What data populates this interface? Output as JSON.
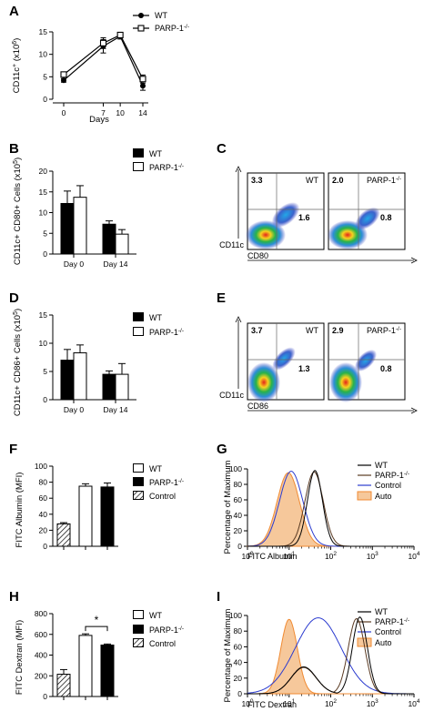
{
  "colors": {
    "ink": "#000000",
    "hatch": "#000000",
    "auto_fill": "#f6c89b",
    "auto_edge": "#f08a32",
    "control_line": "#2b3bcf",
    "wt_line": "#000000",
    "parp_line": "#5a3a22"
  },
  "panel_labels": {
    "A": "A",
    "B": "B",
    "C": "C",
    "D": "D",
    "E": "E",
    "F": "F",
    "G": "G",
    "H": "H",
    "I": "I"
  },
  "panel_a": {
    "ylabel": "CD11c",
    "ylabel_sup": "+",
    "ylabel_unit": " (x10",
    "ylabel_unit_sup": "6",
    "ylabel_close": ")",
    "xlabel": "Days"
  },
  "panel_b": {
    "ylabel": "CD11c+ CD80+ Cells (x10",
    "ylabel_sup": "5",
    "ylabel_close": ")"
  },
  "panel_d": {
    "ylabel": "CD11c+ CD86+ Cells (x10",
    "ylabel_sup": "5",
    "ylabel_close": ")"
  },
  "panel_f": {
    "ylabel": "FITC Albumin (MFI)"
  },
  "panel_h": {
    "ylabel": "FITC Dextran (MFI)",
    "sig": "*"
  },
  "panel_g": {
    "ylabel": "Percentage of Maximum",
    "xlabel": "FITC Albumin"
  },
  "panel_i": {
    "ylabel": "Percentage of Maximum",
    "xlabel": "FITC Dextran"
  },
  "flow_c": {
    "left": {
      "tl": "3.3",
      "br": "1.6",
      "tag": "WT",
      "ylab": "CD11c"
    },
    "right": {
      "tl": "2.0",
      "br": "0.8",
      "tag": "PARP-1",
      "tag_sup": "-/-"
    },
    "xlab": "CD80"
  },
  "flow_e": {
    "left": {
      "tl": "3.7",
      "br": "1.3",
      "tag": "WT",
      "ylab": "CD11c"
    },
    "right": {
      "tl": "2.9",
      "br": "0.8",
      "tag": "PARP-1",
      "tag_sup": "-/-"
    },
    "xlab": "CD86"
  },
  "legends": {
    "wt": "WT",
    "parp": "PARP-1",
    "parp_sup": "-/-",
    "control": "Control",
    "auto": "Auto"
  },
  "chart_data": [
    {
      "id": "A",
      "type": "line",
      "xlabel": "Days",
      "ylabel": "CD11c+ (x10^6)",
      "x": [
        0,
        7,
        10,
        14
      ],
      "xlim": [
        0,
        14
      ],
      "ylim": [
        0,
        15
      ],
      "yticks": [
        0,
        5,
        10,
        15
      ],
      "xticks": [
        0,
        7,
        10,
        14
      ],
      "series": [
        {
          "name": "WT",
          "marker": "filled-circle",
          "values": [
            4.2,
            11.8,
            14.0,
            3.0
          ],
          "errors": [
            0.4,
            1.5,
            0.6,
            1.0
          ]
        },
        {
          "name": "PARP-1-/-",
          "marker": "open-square",
          "values": [
            5.5,
            12.5,
            14.3,
            4.5
          ],
          "errors": [
            0.5,
            1.2,
            0.5,
            0.9
          ]
        }
      ]
    },
    {
      "id": "B",
      "type": "bar",
      "ylabel": "CD11c+ CD80+ Cells (x10^5)",
      "categories": [
        "Day 0",
        "Day 14"
      ],
      "ylim": [
        0,
        20
      ],
      "yticks": [
        0,
        5,
        10,
        15,
        20
      ],
      "series": [
        {
          "name": "WT",
          "fill": "solid",
          "values": [
            12.2,
            7.2
          ],
          "errors": [
            3.0,
            0.8
          ]
        },
        {
          "name": "PARP-1-/-",
          "fill": "open",
          "values": [
            13.7,
            4.8
          ],
          "errors": [
            2.8,
            1.1
          ]
        }
      ]
    },
    {
      "id": "D",
      "type": "bar",
      "ylabel": "CD11c+ CD86+ Cells (x10^5)",
      "categories": [
        "Day 0",
        "Day 14"
      ],
      "ylim": [
        0,
        15
      ],
      "yticks": [
        0,
        5,
        10,
        15
      ],
      "series": [
        {
          "name": "WT",
          "fill": "solid",
          "values": [
            7.0,
            4.5
          ],
          "errors": [
            1.9,
            0.6
          ]
        },
        {
          "name": "PARP-1-/-",
          "fill": "open",
          "values": [
            8.3,
            4.5
          ],
          "errors": [
            1.4,
            1.9
          ]
        }
      ]
    },
    {
      "id": "F",
      "type": "bar",
      "ylabel": "FITC Albumin (MFI)",
      "categories": [
        "Control",
        "WT",
        "PARP-1-/-"
      ],
      "ylim": [
        0,
        100
      ],
      "yticks": [
        0,
        20,
        40,
        60,
        80,
        100
      ],
      "values": [
        28,
        75,
        74
      ],
      "errors": [
        1.5,
        3,
        5
      ],
      "fills": [
        "hatch",
        "open",
        "solid"
      ]
    },
    {
      "id": "H",
      "type": "bar",
      "ylabel": "FITC Dextran (MFI)",
      "categories": [
        "Control",
        "WT",
        "PARP-1-/-"
      ],
      "ylim": [
        0,
        800
      ],
      "yticks": [
        0,
        200,
        400,
        600,
        800
      ],
      "values": [
        215,
        590,
        497
      ],
      "errors": [
        45,
        15,
        10
      ],
      "fills": [
        "hatch",
        "open",
        "solid"
      ],
      "annotation": "*"
    },
    {
      "id": "G",
      "type": "area",
      "xlabel": "FITC Albumin",
      "ylabel": "Percentage of Maximum",
      "xscale": "log",
      "xlim": [
        1,
        10000
      ],
      "ylim": [
        0,
        100
      ],
      "yticks": [
        0,
        20,
        40,
        60,
        80,
        100
      ],
      "series": [
        {
          "name": "WT",
          "peak_log10": 1.62,
          "width": 0.18,
          "height": 98
        },
        {
          "name": "PARP-1-/-",
          "peak_log10": 1.6,
          "width": 0.22,
          "height": 96
        },
        {
          "name": "Control",
          "peak_log10": 1.05,
          "width": 0.28,
          "height": 97
        },
        {
          "name": "Auto",
          "peak_log10": 0.98,
          "width": 0.27,
          "height": 95
        }
      ]
    },
    {
      "id": "I",
      "type": "area",
      "xlabel": "FITC Dextran",
      "ylabel": "Percentage of Maximum",
      "xscale": "log",
      "xlim": [
        1,
        10000
      ],
      "ylim": [
        0,
        100
      ],
      "yticks": [
        0,
        20,
        40,
        60,
        80,
        100
      ],
      "series": [
        {
          "name": "WT",
          "peak_log10": 2.7,
          "width": 0.18,
          "height": 98
        },
        {
          "name": "PARP-1-/-",
          "peak_log10": 2.62,
          "width": 0.2,
          "height": 96
        },
        {
          "name": "Control",
          "peak_log10": 1.7,
          "width": 0.55,
          "height": 97
        },
        {
          "name": "Auto",
          "peak_log10": 1.0,
          "width": 0.2,
          "height": 95
        }
      ]
    }
  ]
}
